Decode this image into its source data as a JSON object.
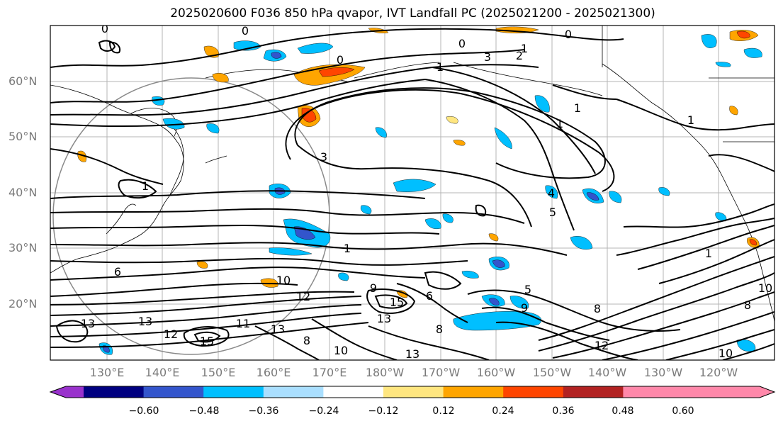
{
  "title": "2025020600 F036 850 hPa qvapor, IVT Landfall PC (2025021200 - 2025021300)",
  "lat_labels": [
    "60°N",
    "50°N",
    "40°N",
    "30°N",
    "20°N"
  ],
  "lon_labels": [
    "130°E",
    "140°E",
    "150°E",
    "160°E",
    "170°E",
    "180°W",
    "170°W",
    "160°W",
    "150°W",
    "140°W",
    "130°W",
    "120°W"
  ],
  "contour_labels": [
    "0",
    "0",
    "0",
    "0",
    "0",
    "1",
    "2",
    "3",
    "1",
    "1",
    "1",
    "1",
    "3",
    "5",
    "4",
    "6",
    "1",
    "1",
    "1",
    "10",
    "12",
    "9",
    "15",
    "6",
    "5",
    "13",
    "13",
    "12",
    "15",
    "13",
    "11",
    "13",
    "8",
    "8",
    "10",
    "10",
    "13",
    "8",
    "12",
    "10",
    "9",
    "8"
  ],
  "colorbar": {
    "ticks": [
      "−0.60",
      "−0.48",
      "−0.36",
      "−0.24",
      "−0.12",
      "0.12",
      "0.24",
      "0.36",
      "0.48",
      "0.60"
    ],
    "colors": [
      "#9932cc",
      "#000080",
      "#3355cc",
      "#00bfff",
      "#aadfff",
      "#ffffff",
      "#ffe680",
      "#ffa500",
      "#ff4500",
      "#b22222",
      "#ff88aa"
    ]
  }
}
